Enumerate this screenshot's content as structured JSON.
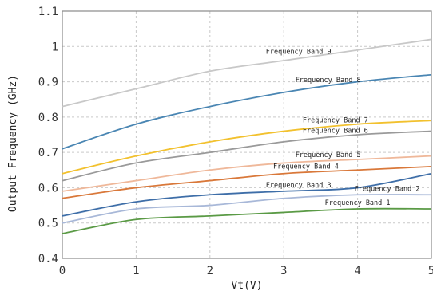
{
  "chart_data": {
    "type": "line",
    "xlabel": "Vt(V)",
    "ylabel": "Output  Frequency (GHz)",
    "xlim": [
      0,
      5
    ],
    "ylim": [
      0.4,
      1.1
    ],
    "xticks": [
      "0",
      "1",
      "2",
      "3",
      "4",
      "5"
    ],
    "yticks": [
      "0.4",
      "0.5",
      "0.6",
      "0.7",
      "0.8",
      "0.9",
      "1",
      "1.1"
    ],
    "grid": true,
    "x": [
      0,
      1,
      2,
      3,
      4,
      5
    ],
    "series": [
      {
        "name": "Frequency Band 1",
        "color": "#5a9a45",
        "values": [
          0.47,
          0.51,
          0.52,
          0.53,
          0.54,
          0.54
        ]
      },
      {
        "name": "Frequency Band 2",
        "color": "#a8b8d8",
        "values": [
          0.5,
          0.54,
          0.55,
          0.57,
          0.58,
          0.58
        ]
      },
      {
        "name": "Frequency Band 3",
        "color": "#3e6ea8",
        "values": [
          0.52,
          0.56,
          0.58,
          0.59,
          0.6,
          0.64
        ]
      },
      {
        "name": "Frequency Band 4",
        "color": "#d9783a",
        "values": [
          0.57,
          0.6,
          0.62,
          0.64,
          0.65,
          0.66
        ]
      },
      {
        "name": "Frequency Band 5",
        "color": "#efb89a",
        "values": [
          0.59,
          0.62,
          0.65,
          0.67,
          0.68,
          0.69
        ]
      },
      {
        "name": "Frequency Band 6",
        "color": "#9a9a9a",
        "values": [
          0.62,
          0.67,
          0.7,
          0.73,
          0.75,
          0.76
        ]
      },
      {
        "name": "Frequency Band 7",
        "color": "#f2c12e",
        "values": [
          0.64,
          0.69,
          0.73,
          0.76,
          0.78,
          0.79
        ]
      },
      {
        "name": "Frequency Band 8",
        "color": "#4a86b3",
        "values": [
          0.71,
          0.78,
          0.83,
          0.87,
          0.9,
          0.92
        ]
      },
      {
        "name": "Frequency Band 9",
        "color": "#c8c8c8",
        "values": [
          0.83,
          0.88,
          0.93,
          0.96,
          0.99,
          1.02
        ]
      }
    ]
  }
}
